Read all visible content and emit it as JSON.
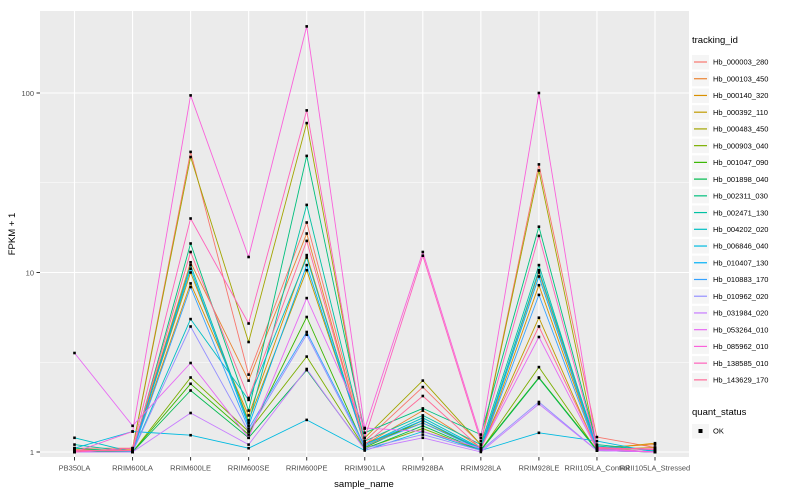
{
  "chart_data": {
    "type": "line",
    "title": "",
    "xlabel": "sample_name",
    "ylabel": "FPKM + 1",
    "x_categories": [
      "PB350LA",
      "RRIM600LA",
      "RRIM600LE",
      "RRIM600SE",
      "RRIM600PE",
      "RRIM901LA",
      "RRIM928BA",
      "RRIM928LA",
      "RRIM928LE",
      "RRII105LA_Control",
      "RRII105LA_Stressed"
    ],
    "y_scale": {
      "type": "log10",
      "major_tick_labels": [
        "1",
        "10",
        "100"
      ],
      "major_values": [
        1,
        10,
        100
      ],
      "minor_values": [
        3.1623,
        31.623
      ],
      "ylim": [
        0.95,
        290
      ]
    },
    "grid": true,
    "legend_position": "right",
    "legend": {
      "color_legend_title": "tracking_id",
      "shape_legend_title": "quant_status",
      "shape_entries": [
        {
          "label": "OK",
          "marker": "black-square"
        }
      ]
    },
    "point_marker": {
      "shape": "square",
      "color": "#000000"
    },
    "series": [
      {
        "name": "Hb_000003_280",
        "color": "#F8766D",
        "values": [
          1.05,
          1.05,
          47,
          2.7,
          19,
          1.15,
          2.3,
          1.1,
          40,
          1.21,
          1.06
        ]
      },
      {
        "name": "Hb_000103_450",
        "color": "#EA8331",
        "values": [
          1.03,
          1.03,
          11.4,
          2.5,
          16.5,
          1.1,
          1.7,
          1.06,
          10,
          1.06,
          1.1
        ]
      },
      {
        "name": "Hb_000140_320",
        "color": "#D89000",
        "values": [
          1.0,
          1.02,
          8.7,
          1.6,
          12.5,
          1.08,
          1.5,
          1.03,
          8.5,
          1.04,
          1.12
        ]
      },
      {
        "name": "Hb_000392_110",
        "color": "#C09B00",
        "values": [
          1.0,
          1.02,
          10,
          1.5,
          10.3,
          1.12,
          1.45,
          1.05,
          5.6,
          1.03,
          1.06
        ]
      },
      {
        "name": "Hb_000483_450",
        "color": "#A3A500",
        "values": [
          1.0,
          1.05,
          44,
          4.1,
          68,
          1.2,
          2.5,
          1.1,
          37,
          1.05,
          1.03
        ]
      },
      {
        "name": "Hb_000903_040",
        "color": "#7CAE00",
        "values": [
          1.0,
          1.0,
          2.6,
          1.3,
          3.4,
          1.05,
          1.35,
          1.02,
          2.97,
          1.02,
          1.0
        ]
      },
      {
        "name": "Hb_001047_090",
        "color": "#39B600",
        "values": [
          1.0,
          1.0,
          2.4,
          1.25,
          5.65,
          1.06,
          1.5,
          1.03,
          2.6,
          1.03,
          1.0
        ]
      },
      {
        "name": "Hb_001898_040",
        "color": "#00BB4E",
        "values": [
          1.02,
          1.0,
          2.2,
          1.2,
          2.86,
          1.04,
          1.4,
          1.02,
          2.58,
          1.02,
          1.0
        ]
      },
      {
        "name": "Hb_002311_030",
        "color": "#00BF7D",
        "values": [
          1.05,
          1.0,
          14.5,
          1.7,
          44.6,
          1.28,
          1.75,
          1.25,
          18,
          1.1,
          1.02
        ]
      },
      {
        "name": "Hb_002471_130",
        "color": "#00C1A3",
        "values": [
          1.1,
          1.0,
          11,
          1.45,
          23.8,
          1.15,
          1.6,
          1.1,
          11,
          1.05,
          1.0
        ]
      },
      {
        "name": "Hb_004202_020",
        "color": "#00BFC4",
        "values": [
          1.2,
          1.0,
          5.5,
          1.95,
          12.1,
          1.1,
          1.55,
          1.05,
          10.3,
          1.08,
          1.02
        ]
      },
      {
        "name": "Hb_006846_040",
        "color": "#00BAE0",
        "values": [
          1.05,
          1.3,
          1.24,
          1.05,
          1.51,
          1.02,
          1.3,
          1.02,
          1.28,
          1.15,
          1.0
        ]
      },
      {
        "name": "Hb_010407_130",
        "color": "#00B0F6",
        "values": [
          1.0,
          1.0,
          10.5,
          1.4,
          11,
          1.1,
          1.5,
          1.04,
          9.5,
          1.04,
          1.0
        ]
      },
      {
        "name": "Hb_010883_170",
        "color": "#35A2FF",
        "values": [
          1.0,
          1.0,
          8.3,
          1.35,
          4.66,
          1.08,
          1.45,
          1.03,
          7.5,
          1.03,
          1.0
        ]
      },
      {
        "name": "Hb_010962_020",
        "color": "#9590FF",
        "values": [
          1.0,
          1.0,
          5.0,
          1.3,
          4.5,
          1.05,
          1.25,
          1.02,
          1.9,
          1.02,
          1.0
        ]
      },
      {
        "name": "Hb_031984_020",
        "color": "#C77CFF",
        "values": [
          1.0,
          1.0,
          1.65,
          1.1,
          2.9,
          1.03,
          1.2,
          1.0,
          1.85,
          1.02,
          1.0
        ]
      },
      {
        "name": "Hb_053264_010",
        "color": "#E76BF3",
        "values": [
          3.56,
          1.4,
          3.13,
          1.2,
          7.2,
          1.36,
          1.3,
          1.05,
          4.37,
          1.03,
          1.0
        ]
      },
      {
        "name": "Hb_085962_010",
        "color": "#FA62DB",
        "values": [
          1.0,
          1.3,
          97,
          12.2,
          235,
          1.35,
          13,
          1.2,
          100,
          1.05,
          1.0
        ]
      },
      {
        "name": "Hb_138585_010",
        "color": "#FF62BC",
        "values": [
          1.0,
          1.05,
          20,
          5.2,
          80,
          1.2,
          12.4,
          1.15,
          16,
          1.06,
          1.03
        ]
      },
      {
        "name": "Hb_143629_170",
        "color": "#FF6A98",
        "values": [
          1.02,
          1.02,
          13,
          2.0,
          15,
          1.1,
          2.05,
          1.05,
          5.0,
          1.04,
          1.05
        ]
      }
    ]
  },
  "style": {
    "panel_bg": "#EBEBEB",
    "grid_color": "#FFFFFF",
    "tick_label_color": "#4D4D4D",
    "axis_title_color": "#000000",
    "legend_key_bg": "#F5F5F5",
    "point_color": "#000000"
  }
}
